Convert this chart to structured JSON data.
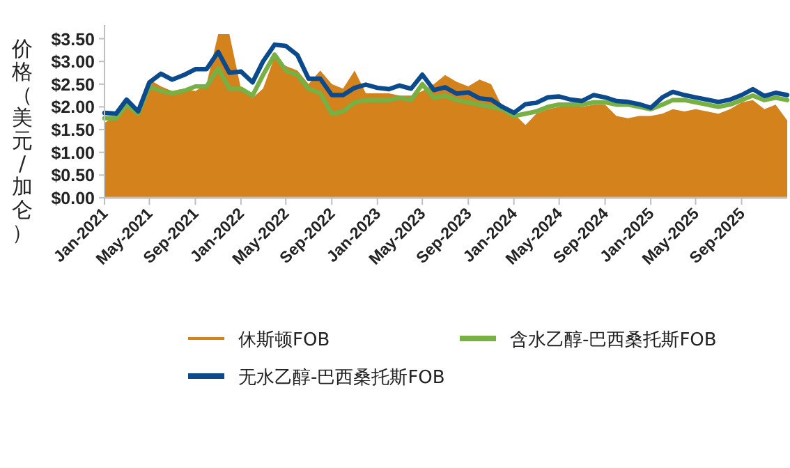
{
  "chart_data": {
    "type": "line",
    "ylabel": "价格（美元/加仑）",
    "x": [
      "2021-01",
      "2021-02",
      "2021-03",
      "2021-04",
      "2021-05",
      "2021-06",
      "2021-07",
      "2021-08",
      "2021-09",
      "2021-10",
      "2021-11",
      "2021-12",
      "2022-01",
      "2022-02",
      "2022-03",
      "2022-04",
      "2022-05",
      "2022-06",
      "2022-07",
      "2022-08",
      "2022-09",
      "2022-10",
      "2022-11",
      "2022-12",
      "2023-01",
      "2023-02",
      "2023-03",
      "2023-04",
      "2023-05",
      "2023-06",
      "2023-07",
      "2023-08",
      "2023-09",
      "2023-10",
      "2023-11",
      "2023-12",
      "2024-01",
      "2024-02",
      "2024-03",
      "2024-04",
      "2024-05",
      "2024-06",
      "2024-07",
      "2024-08",
      "2024-09",
      "2024-10",
      "2024-11",
      "2024-12",
      "2025-01",
      "2025-02",
      "2025-03",
      "2025-04",
      "2025-05",
      "2025-06",
      "2025-07",
      "2025-08",
      "2025-09",
      "2025-10",
      "2025-11",
      "2025-12",
      "2026-01"
    ],
    "series": [
      {
        "name": "休斯顿FOB",
        "type": "area",
        "color": "#d4821c",
        "values": [
          1.65,
          1.8,
          2.0,
          1.85,
          2.6,
          2.45,
          2.35,
          2.4,
          2.35,
          2.5,
          3.6,
          3.6,
          2.4,
          2.2,
          2.4,
          3.1,
          2.9,
          2.8,
          2.5,
          2.8,
          2.5,
          2.4,
          2.8,
          2.3,
          2.3,
          2.3,
          2.25,
          2.25,
          2.35,
          2.5,
          2.7,
          2.55,
          2.45,
          2.6,
          2.5,
          2.0,
          1.85,
          1.6,
          1.85,
          1.95,
          2.0,
          2.05,
          2.0,
          2.05,
          2.05,
          1.8,
          1.75,
          1.8,
          1.8,
          1.85,
          1.95,
          1.9,
          1.95,
          1.9,
          1.85,
          1.95,
          2.1,
          2.15,
          1.95,
          2.05,
          1.7
        ]
      },
      {
        "name": "含水乙醇-巴西桑托斯FOB",
        "type": "line",
        "color": "#77b043",
        "values": [
          1.75,
          1.75,
          2.05,
          1.85,
          2.45,
          2.35,
          2.3,
          2.35,
          2.45,
          2.45,
          2.85,
          2.4,
          2.4,
          2.25,
          2.7,
          3.15,
          2.8,
          2.7,
          2.4,
          2.3,
          1.85,
          1.9,
          2.1,
          2.15,
          2.15,
          2.15,
          2.2,
          2.15,
          2.5,
          2.2,
          2.25,
          2.15,
          2.1,
          2.05,
          2.0,
          1.95,
          1.8,
          1.85,
          1.9,
          2.0,
          2.05,
          2.05,
          2.05,
          2.1,
          2.1,
          2.05,
          2.05,
          2.0,
          1.95,
          2.05,
          2.15,
          2.15,
          2.1,
          2.05,
          2.0,
          2.05,
          2.15,
          2.25,
          2.15,
          2.2,
          2.15
        ]
      },
      {
        "name": "无水乙醇-巴西桑托斯FOB",
        "type": "line",
        "color": "#0b4a8c",
        "values": [
          1.87,
          1.85,
          2.16,
          1.9,
          2.54,
          2.73,
          2.6,
          2.7,
          2.83,
          2.83,
          3.21,
          2.75,
          2.78,
          2.54,
          3.0,
          3.37,
          3.34,
          3.14,
          2.62,
          2.62,
          2.26,
          2.26,
          2.42,
          2.49,
          2.42,
          2.39,
          2.47,
          2.4,
          2.71,
          2.37,
          2.43,
          2.29,
          2.32,
          2.19,
          2.16,
          2.0,
          1.87,
          2.06,
          2.09,
          2.21,
          2.23,
          2.16,
          2.13,
          2.26,
          2.21,
          2.13,
          2.11,
          2.06,
          1.98,
          2.21,
          2.33,
          2.26,
          2.21,
          2.16,
          2.11,
          2.16,
          2.26,
          2.39,
          2.24,
          2.31,
          2.26
        ]
      }
    ],
    "xlim": [
      "2021-01",
      "2026-01"
    ],
    "xticks": [
      {
        "value": "2021-01",
        "label": "Jan-2021"
      },
      {
        "value": "2021-05",
        "label": "May-2021"
      },
      {
        "value": "2021-09",
        "label": "Sep-2021"
      },
      {
        "value": "2022-01",
        "label": "Jan-2022"
      },
      {
        "value": "2022-05",
        "label": "May-2022"
      },
      {
        "value": "2022-09",
        "label": "Sep-2022"
      },
      {
        "value": "2023-01",
        "label": "Jan-2023"
      },
      {
        "value": "2023-05",
        "label": "May-2023"
      },
      {
        "value": "2023-09",
        "label": "Sep-2023"
      },
      {
        "value": "2024-01",
        "label": "Jan-2024"
      },
      {
        "value": "2024-05",
        "label": "May-2024"
      },
      {
        "value": "2024-09",
        "label": "Sep-2024"
      },
      {
        "value": "2025-01",
        "label": "Jan-2025"
      },
      {
        "value": "2025-05",
        "label": "May-2025"
      },
      {
        "value": "2025-09",
        "label": "Sep-2025"
      }
    ],
    "ylim": [
      0,
      3.8
    ],
    "yticks": [
      {
        "value": 0,
        "label": "$0.00"
      },
      {
        "value": 0.5,
        "label": "$0.50"
      },
      {
        "value": 1,
        "label": "$1.00"
      },
      {
        "value": 1.5,
        "label": "$1.50"
      },
      {
        "value": 2,
        "label": "$2.00"
      },
      {
        "value": 2.5,
        "label": "$2.50"
      },
      {
        "value": 3,
        "label": "$3.00"
      },
      {
        "value": 3.5,
        "label": "$3.50"
      }
    ],
    "grid": false,
    "legend": "bottom",
    "line_style": "solid",
    "marker": "none"
  }
}
